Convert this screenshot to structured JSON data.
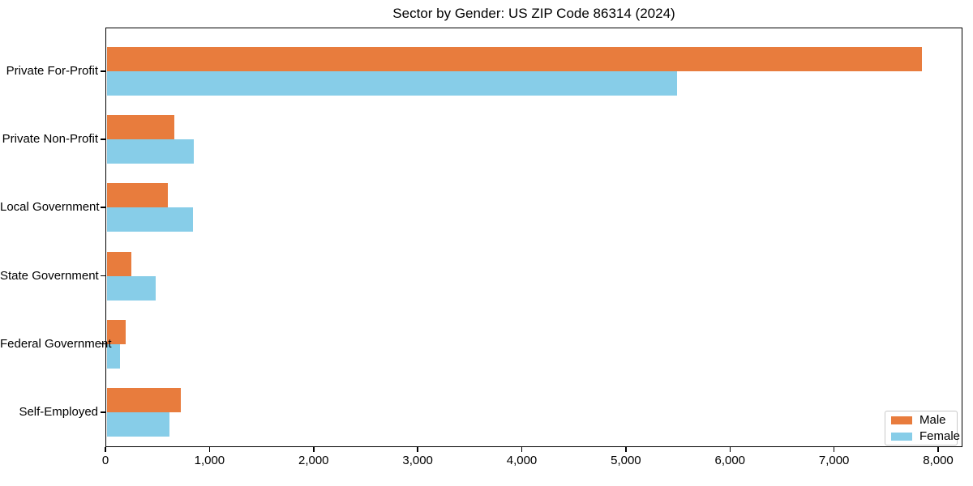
{
  "chart_data": {
    "type": "bar",
    "orientation": "horizontal",
    "title": "Sector by Gender: US ZIP Code 86314 (2024)",
    "categories": [
      "Private For-Profit",
      "Private Non-Profit",
      "Local Government",
      "State Government",
      "Federal Government",
      "Self-Employed"
    ],
    "series": [
      {
        "name": "Male",
        "color": "#E87C3D",
        "values": [
          7830,
          645,
          585,
          235,
          180,
          710
        ]
      },
      {
        "name": "Female",
        "color": "#87CDE8",
        "values": [
          5480,
          835,
          825,
          465,
          125,
          600
        ]
      }
    ],
    "xlabel": "",
    "ylabel": "",
    "xlim": [
      0,
      8000
    ],
    "x_ticks": [
      0,
      1000,
      2000,
      3000,
      4000,
      5000,
      6000,
      7000,
      8000
    ],
    "x_tick_labels": [
      "0",
      "1,000",
      "2,000",
      "3,000",
      "4,000",
      "5,000",
      "6,000",
      "7,000",
      "8,000"
    ],
    "grid": false,
    "legend_position": "lower right",
    "colors": {
      "spine": "#000000",
      "background": "#ffffff",
      "legend_border": "#c9c9c9"
    }
  }
}
